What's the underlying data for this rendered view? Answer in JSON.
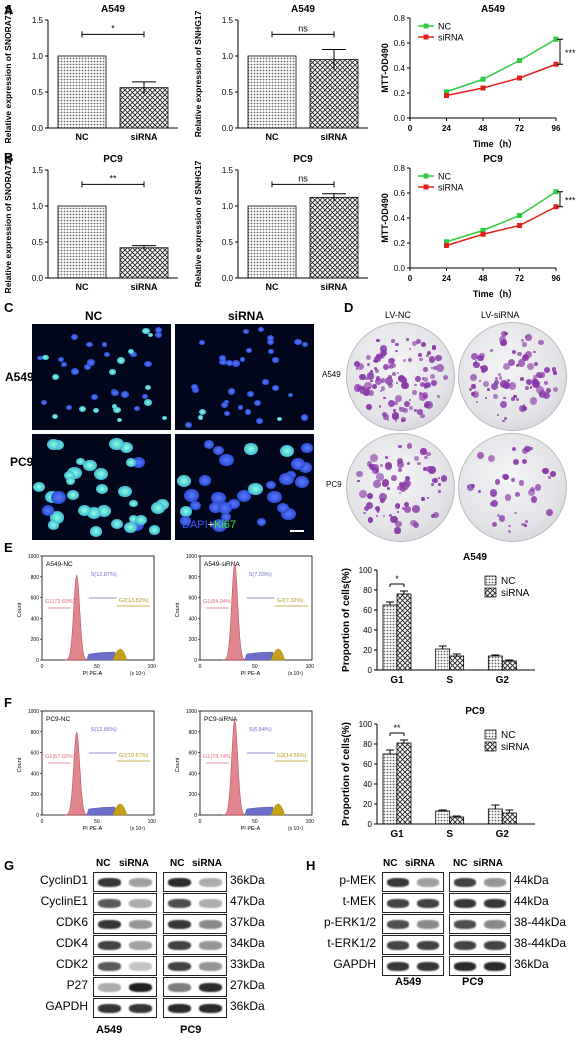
{
  "panel_letters": {
    "A": "A",
    "B": "B",
    "C": "C",
    "D": "D",
    "E": "E",
    "F": "F",
    "G": "G",
    "H": "H"
  },
  "chart_data": [
    {
      "id": "A_snora",
      "type": "bar",
      "title": "A549",
      "ylabel": "Relative expression of SNORA71A",
      "categories": [
        "NC",
        "siRNA"
      ],
      "values": [
        1.0,
        0.56
      ],
      "errors": [
        0,
        0.08
      ],
      "ylim": [
        0,
        1.5
      ],
      "yticks": [
        "0.0",
        "0.5",
        "1.0",
        "1.5"
      ],
      "significance": "*"
    },
    {
      "id": "A_snhg",
      "type": "bar",
      "title": "A549",
      "ylabel": "Relative expression of SNHG17",
      "categories": [
        "NC",
        "siRNA"
      ],
      "values": [
        1.0,
        0.95
      ],
      "errors": [
        0,
        0.14
      ],
      "ylim": [
        0,
        1.5
      ],
      "yticks": [
        "0.0",
        "0.5",
        "1.0",
        "1.5"
      ],
      "significance": "ns"
    },
    {
      "id": "A_mtt",
      "type": "line",
      "title": "A549",
      "ylabel": "MTT-OD490",
      "xlabel": "Time（h）",
      "x": [
        24,
        48,
        72,
        96
      ],
      "xticks": [
        "0",
        "24",
        "48",
        "72",
        "96"
      ],
      "ylim": [
        0,
        0.8
      ],
      "yticks": [
        "0.0",
        "0.2",
        "0.4",
        "0.6",
        "0.8"
      ],
      "series": [
        {
          "name": "NC",
          "color": "#2ecc40",
          "values": [
            0.21,
            0.31,
            0.46,
            0.63
          ]
        },
        {
          "name": "siRNA",
          "color": "#e0201a",
          "values": [
            0.18,
            0.24,
            0.32,
            0.43
          ]
        }
      ],
      "significance": "***"
    },
    {
      "id": "B_snora",
      "type": "bar",
      "title": "PC9",
      "ylabel": "Relative expression of SNORA71A",
      "categories": [
        "NC",
        "siRNA"
      ],
      "values": [
        1.0,
        0.42
      ],
      "errors": [
        0,
        0.03
      ],
      "ylim": [
        0,
        1.5
      ],
      "yticks": [
        "0.0",
        "0.5",
        "1.0",
        "1.5"
      ],
      "significance": "**"
    },
    {
      "id": "B_snhg",
      "type": "bar",
      "title": "PC9",
      "ylabel": "Relative expression of SNHG17",
      "categories": [
        "NC",
        "siRNA"
      ],
      "values": [
        1.0,
        1.12
      ],
      "errors": [
        0,
        0.05
      ],
      "ylim": [
        0,
        1.5
      ],
      "yticks": [
        "0.0",
        "0.5",
        "1.0",
        "1.5"
      ],
      "significance": "ns"
    },
    {
      "id": "B_mtt",
      "type": "line",
      "title": "PC9",
      "ylabel": "MTT-OD490",
      "xlabel": "Time（h）",
      "x": [
        24,
        48,
        72,
        96
      ],
      "xticks": [
        "0",
        "24",
        "48",
        "72",
        "96"
      ],
      "ylim": [
        0,
        0.8
      ],
      "yticks": [
        "0.0",
        "0.2",
        "0.4",
        "0.6",
        "0.8"
      ],
      "series": [
        {
          "name": "NC",
          "color": "#2ecc40",
          "values": [
            0.21,
            0.3,
            0.42,
            0.61
          ]
        },
        {
          "name": "siRNA",
          "color": "#e0201a",
          "values": [
            0.18,
            0.27,
            0.34,
            0.49
          ]
        }
      ],
      "significance": "***"
    },
    {
      "id": "E_cycle",
      "type": "bar",
      "title": "A549",
      "ylabel": "Proportion of cells(%)",
      "categories": [
        "G1",
        "S",
        "G2"
      ],
      "ylim": [
        0,
        100
      ],
      "yticks": [
        "0",
        "20",
        "40",
        "60",
        "80",
        "100"
      ],
      "series": [
        {
          "name": "NC",
          "values": [
            65,
            21,
            14
          ],
          "errors": [
            3,
            3,
            1
          ]
        },
        {
          "name": "siRNA",
          "values": [
            76,
            14,
            9
          ],
          "errors": [
            3,
            2,
            1
          ]
        }
      ],
      "significance": "*"
    },
    {
      "id": "F_cycle",
      "type": "bar",
      "title": "PC9",
      "ylabel": "Proportion of cells(%)",
      "categories": [
        "G1",
        "S",
        "G2"
      ],
      "ylim": [
        0,
        100
      ],
      "yticks": [
        "0",
        "20",
        "40",
        "60",
        "80",
        "100"
      ],
      "series": [
        {
          "name": "NC",
          "values": [
            70,
            13,
            15
          ],
          "errors": [
            4,
            1,
            4
          ]
        },
        {
          "name": "siRNA",
          "values": [
            81,
            7,
            11
          ],
          "errors": [
            3,
            1,
            3
          ]
        }
      ],
      "significance": "**"
    }
  ],
  "panelC": {
    "col_nc": "NC",
    "col_si": "siRNA",
    "row1": "A549",
    "row2": "PC9",
    "legend_dapi": "DAPI",
    "legend_plus": "+",
    "legend_ki": "Ki67"
  },
  "panelD": {
    "col_nc": "LV-NC",
    "col_si": "LV-siRNA",
    "row1": "A549",
    "row2": "PC9"
  },
  "panelE": {
    "h1": {
      "title": "A549-NC",
      "S": "S(12.87%)",
      "G1": "G1(72.69%)",
      "G2": "G2(13.82%)"
    },
    "h2": {
      "title": "A549-siRNA",
      "S": "S(7.03%)",
      "G1": "G1(84.94%)",
      "G2": "G2(7.32%)"
    },
    "ylabel": "Count",
    "xlabel": "PI PE-A",
    "xunit": "(x 10⁴)",
    "xticks": [
      "0",
      "50",
      "100"
    ],
    "yticks": [
      "0",
      "200",
      "400",
      "600",
      "800",
      "1000"
    ]
  },
  "panelF": {
    "h1": {
      "title": "PC9-NC",
      "S": "S(12.85%)",
      "G1": "G1(67.02%)",
      "G2": "G2(19.67%)"
    },
    "h2": {
      "title": "PC9-siRNA",
      "S": "S(6.54%)",
      "G1": "G1(78.74%)",
      "G2": "G2(14.56%)"
    },
    "ylabel": "Count",
    "xlabel": "PI PE-A",
    "xunit": "(x 10⁴)",
    "xticks": [
      "0",
      "50",
      "100"
    ],
    "yticks": [
      "0",
      "200",
      "400",
      "600",
      "800",
      "1000"
    ]
  },
  "panelG": {
    "col_nc": "NC",
    "col_si": "siRNA",
    "rows": [
      "CyclinD1",
      "CyclinE1",
      "CDK6",
      "CDK4",
      "CDK2",
      "P27",
      "GAPDH"
    ],
    "sizes": [
      "36kDa",
      "47kDa",
      "37kDa",
      "34kDa",
      "33kDa",
      "27kDa",
      "36kDa"
    ],
    "cell1": "A549",
    "cell2": "PC9"
  },
  "panelH": {
    "col_nc": "NC",
    "col_si": "siRNA",
    "rows": [
      "p-MEK",
      "t-MEK",
      "p-ERK1/2",
      "t-ERK1/2",
      "GAPDH"
    ],
    "sizes": [
      "44kDa",
      "44kDa",
      "38-44kDa",
      "38-44kDa",
      "36kDa"
    ],
    "cell1": "A549",
    "cell2": "PC9"
  }
}
